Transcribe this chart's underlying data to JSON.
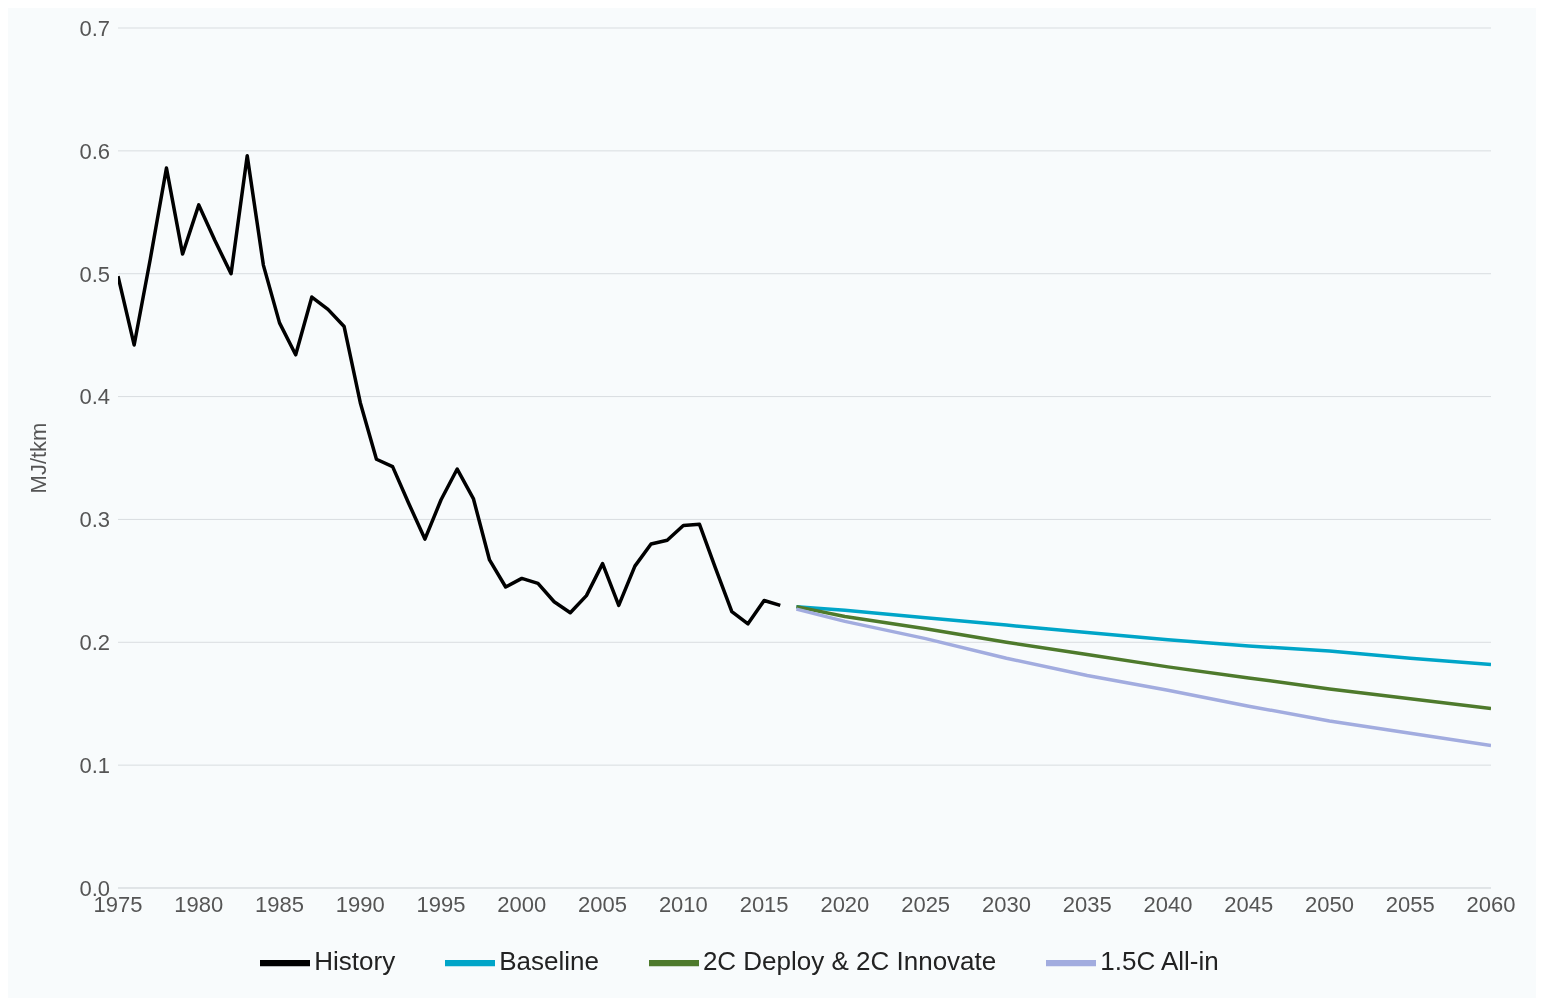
{
  "chart_data": {
    "type": "line",
    "ylabel": "MJ/tkm",
    "xlim": [
      1975,
      2060
    ],
    "xticks": [
      1975,
      1980,
      1985,
      1990,
      1995,
      2000,
      2005,
      2010,
      2015,
      2020,
      2025,
      2030,
      2035,
      2040,
      2045,
      2050,
      2055,
      2060
    ],
    "ylim": [
      0,
      0.7
    ],
    "yticks": [
      {
        "value": 0,
        "label": "0.0"
      },
      0.1,
      0.2,
      0.3,
      0.4,
      0.5,
      0.6,
      0.7
    ],
    "grid": "y",
    "legend": "bottom",
    "marker": "none",
    "line_style": "solid",
    "series": [
      {
        "name": "History",
        "color": "#000000",
        "x": [
          1975,
          1976,
          1977,
          1978,
          1979,
          1980,
          1981,
          1982,
          1983,
          1984,
          1985,
          1986,
          1987,
          1988,
          1989,
          1990,
          1991,
          1992,
          1993,
          1994,
          1995,
          1996,
          1997,
          1998,
          1999,
          2000,
          2001,
          2002,
          2003,
          2004,
          2005,
          2006,
          2007,
          2008,
          2009,
          2010,
          2011,
          2012,
          2013,
          2014,
          2015,
          2016
        ],
        "values": [
          0.498,
          0.442,
          0.512,
          0.586,
          0.516,
          0.556,
          0.527,
          0.5,
          0.596,
          0.507,
          0.46,
          0.434,
          0.481,
          0.471,
          0.457,
          0.395,
          0.349,
          0.343,
          0.313,
          0.284,
          0.316,
          0.341,
          0.317,
          0.267,
          0.245,
          0.252,
          0.248,
          0.233,
          0.224,
          0.238,
          0.264,
          0.23,
          0.262,
          0.28,
          0.283,
          0.295,
          0.296,
          0.26,
          0.225,
          0.215,
          0.234,
          0.23
        ]
      },
      {
        "name": "Baseline",
        "color": "#00a5c8",
        "x": [
          2017,
          2020,
          2025,
          2030,
          2035,
          2040,
          2045,
          2050,
          2055,
          2060
        ],
        "values": [
          0.229,
          0.226,
          0.22,
          0.214,
          0.208,
          0.202,
          0.197,
          0.193,
          0.187,
          0.182
        ]
      },
      {
        "name": "2C Deploy & 2C Innovate",
        "color": "#4e7a2c",
        "x": [
          2017,
          2020,
          2025,
          2030,
          2035,
          2040,
          2045,
          2050,
          2055,
          2060
        ],
        "values": [
          0.229,
          0.221,
          0.211,
          0.2,
          0.19,
          0.18,
          0.171,
          0.162,
          0.154,
          0.146
        ]
      },
      {
        "name": "1.5C All-in",
        "color": "#a2acdf",
        "x": [
          2017,
          2020,
          2025,
          2030,
          2035,
          2040,
          2045,
          2050,
          2055,
          2060
        ],
        "values": [
          0.227,
          0.217,
          0.203,
          0.187,
          0.173,
          0.161,
          0.148,
          0.136,
          0.126,
          0.116
        ]
      }
    ]
  }
}
